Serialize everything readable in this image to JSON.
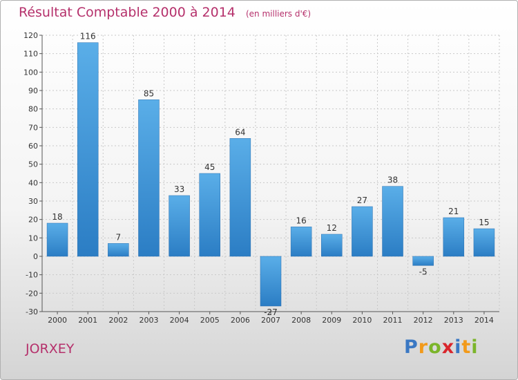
{
  "header": {
    "title": "Résultat Comptable 2000 à 2014",
    "unit": "(en milliers d'€)"
  },
  "commune": "JORXEY",
  "logo": {
    "text": "Proxiti",
    "letters": [
      {
        "ch": "P",
        "color": "#3a78c3"
      },
      {
        "ch": "r",
        "color": "#f29a1a"
      },
      {
        "ch": "o",
        "color": "#7bb52a"
      },
      {
        "ch": "x",
        "color": "#d9262c"
      },
      {
        "ch": "i",
        "color": "#3a78c3"
      },
      {
        "ch": "t",
        "color": "#f29a1a"
      },
      {
        "ch": "i",
        "color": "#7bb52a"
      }
    ]
  },
  "colors": {
    "title": "#b5306b",
    "bar_light": "#5aaee8",
    "bar_dark": "#2b7dc4",
    "grid": "#c8c8c8"
  },
  "chart_data": {
    "type": "bar",
    "title": "Résultat Comptable 2000 à 2014",
    "subtitle": "(en milliers d'€)",
    "xlabel": "",
    "ylabel": "",
    "categories": [
      "2000",
      "2001",
      "2002",
      "2003",
      "2004",
      "2005",
      "2006",
      "2007",
      "2008",
      "2009",
      "2010",
      "2011",
      "2012",
      "2013",
      "2014"
    ],
    "values": [
      18,
      116,
      7,
      85,
      33,
      45,
      64,
      -27,
      16,
      12,
      27,
      38,
      -5,
      21,
      15
    ],
    "ylim": [
      -30,
      120
    ],
    "yticks": [
      -30,
      -20,
      -10,
      0,
      10,
      20,
      30,
      40,
      50,
      60,
      70,
      80,
      90,
      100,
      110,
      120
    ],
    "grid": true,
    "legend": "none"
  }
}
